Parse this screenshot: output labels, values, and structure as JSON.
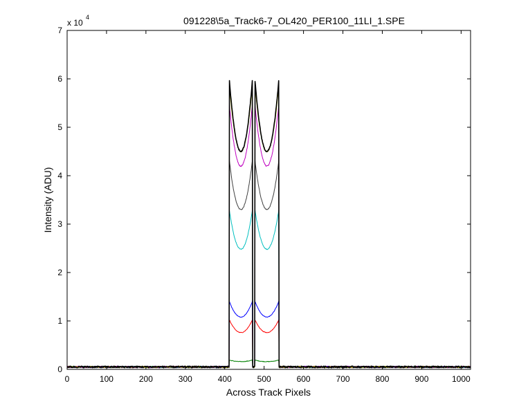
{
  "chart_data": {
    "type": "line",
    "title": "091228\\5a_Track6-7_OL420_PER100_11LI_1.SPE",
    "xlabel": "Across Track Pixels",
    "ylabel": "Intensity (ADU)",
    "y_multiplier": "x 10",
    "y_multiplier_exponent": "4",
    "xlim": [
      0,
      1024
    ],
    "ylim": [
      0,
      70000
    ],
    "x_ticks": [
      0,
      100,
      200,
      300,
      400,
      500,
      600,
      700,
      800,
      900,
      1000
    ],
    "y_ticks": [
      0,
      10000,
      20000,
      30000,
      40000,
      50000,
      60000,
      70000
    ],
    "y_tick_labels": [
      "0",
      "1",
      "2",
      "3",
      "4",
      "5",
      "6",
      "7"
    ],
    "grid": false,
    "legend": "none",
    "profile_shape": {
      "background": 500,
      "segments": [
        {
          "x_start": 412,
          "x_end": 470
        },
        {
          "x_start": 477,
          "x_end": 537
        }
      ]
    },
    "series": [
      {
        "color": "#008000",
        "edge_peak": 1900,
        "center_min": 1600
      },
      {
        "color": "#ff0000",
        "edge_peak": 10200,
        "center_min": 7600
      },
      {
        "color": "#0000ff",
        "edge_peak": 14000,
        "center_min": 10800
      },
      {
        "color": "#00bfbf",
        "edge_peak": 32800,
        "center_min": 24800
      },
      {
        "color": "#404040",
        "edge_peak": 43000,
        "center_min": 33000
      },
      {
        "color": "#bf00bf",
        "edge_peak": 54500,
        "center_min": 42000
      },
      {
        "color": "#bfbf00",
        "edge_peak": 58500,
        "center_min": 45000
      },
      {
        "color": "#000000",
        "edge_peak": 59500,
        "center_min": 45000
      }
    ]
  }
}
